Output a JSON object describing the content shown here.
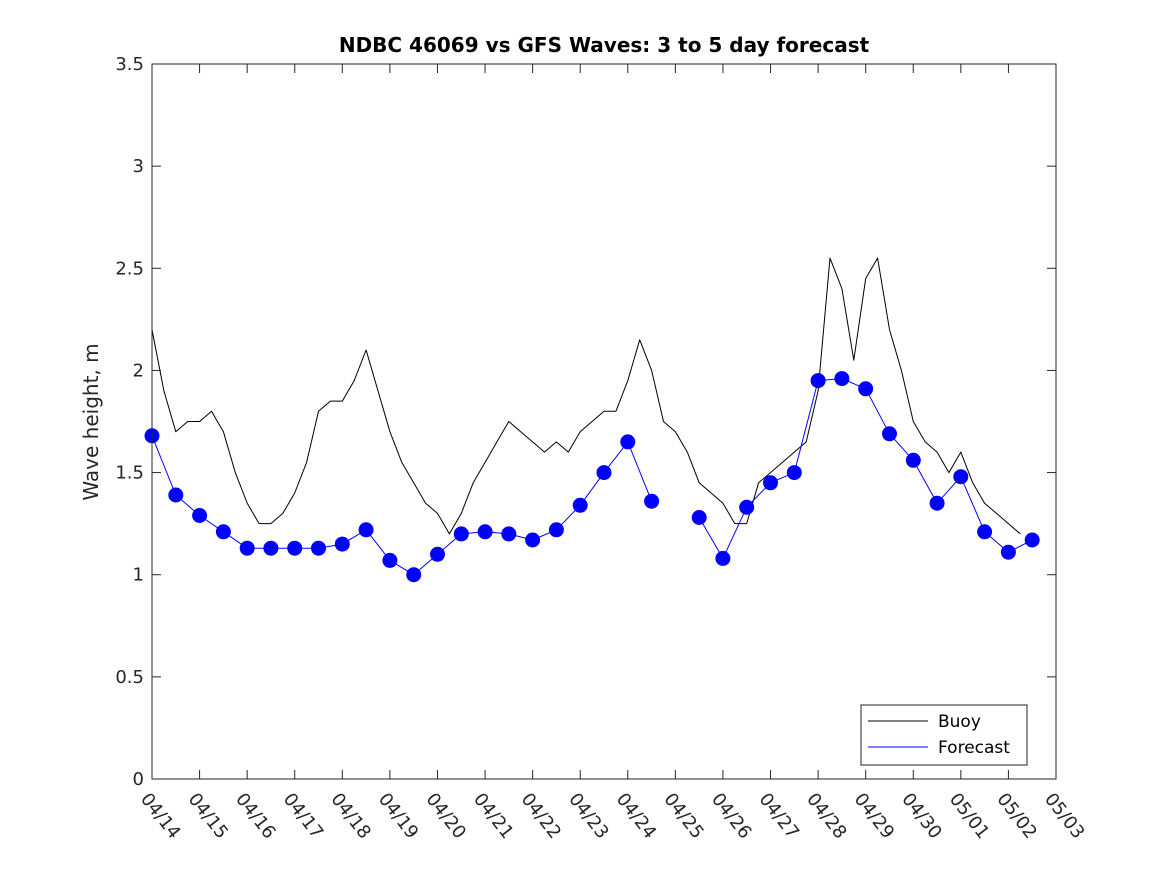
{
  "chart_data": {
    "type": "line",
    "title": "NDBC 46069 vs GFS Waves: 3 to 5 day forecast",
    "xlabel": "",
    "ylabel": "Wave height, m",
    "xlim": [
      "04/14",
      "05/03"
    ],
    "ylim": [
      0,
      3.5
    ],
    "y_ticks": [
      "0",
      "0.5",
      "1",
      "1.5",
      "2",
      "2.5",
      "3",
      "3.5"
    ],
    "x_ticks": [
      "04/14",
      "04/15",
      "04/16",
      "04/17",
      "04/18",
      "04/19",
      "04/20",
      "04/21",
      "04/22",
      "04/23",
      "04/24",
      "04/25",
      "04/26",
      "04/27",
      "04/28",
      "04/29",
      "04/30",
      "05/01",
      "05/02",
      "05/03"
    ],
    "grid": false,
    "legend": {
      "position": "bottom-right",
      "entries": [
        "Buoy",
        "Forecast"
      ]
    },
    "colors": {
      "buoy": "#000000",
      "forecast": "#0000ff",
      "axis": "#262626"
    },
    "series": [
      {
        "name": "Buoy",
        "x": [
          "04/14 00:00",
          "04/14 06:00",
          "04/14 12:00",
          "04/14 18:00",
          "04/15 00:00",
          "04/15 06:00",
          "04/15 12:00",
          "04/15 18:00",
          "04/16 00:00",
          "04/16 06:00",
          "04/16 12:00",
          "04/16 18:00",
          "04/17 00:00",
          "04/17 06:00",
          "04/17 12:00",
          "04/17 18:00",
          "04/18 00:00",
          "04/18 06:00",
          "04/18 12:00",
          "04/18 18:00",
          "04/19 00:00",
          "04/19 06:00",
          "04/19 12:00",
          "04/19 18:00",
          "04/20 00:00",
          "04/20 06:00",
          "04/20 12:00",
          "04/20 18:00",
          "04/21 00:00",
          "04/21 06:00",
          "04/21 12:00",
          "04/21 18:00",
          "04/22 00:00",
          "04/22 06:00",
          "04/22 12:00",
          "04/22 18:00",
          "04/23 00:00",
          "04/23 06:00",
          "04/23 12:00",
          "04/23 18:00",
          "04/24 00:00",
          "04/24 06:00",
          "04/24 12:00",
          "04/24 18:00",
          "04/25 00:00",
          "04/25 06:00",
          "04/25 12:00",
          "04/25 18:00",
          "04/26 00:00",
          "04/26 06:00",
          "04/26 12:00",
          "04/26 18:00",
          "04/27 00:00",
          "04/27 06:00",
          "04/27 12:00",
          "04/27 18:00",
          "04/28 00:00",
          "04/28 06:00",
          "04/28 12:00",
          "04/28 18:00",
          "04/29 00:00",
          "04/29 06:00",
          "04/29 12:00",
          "04/29 18:00",
          "04/30 00:00",
          "04/30 06:00",
          "04/30 12:00",
          "04/30 18:00",
          "05/01 00:00",
          "05/01 06:00",
          "05/01 12:00",
          "05/01 18:00",
          "05/02 00:00",
          "05/02 06:00"
        ],
        "y": [
          2.2,
          1.9,
          1.7,
          1.75,
          1.75,
          1.8,
          1.7,
          1.5,
          1.35,
          1.25,
          1.25,
          1.3,
          1.4,
          1.55,
          1.8,
          1.85,
          1.85,
          1.95,
          2.1,
          1.9,
          1.7,
          1.55,
          1.45,
          1.35,
          1.3,
          1.2,
          1.3,
          1.45,
          1.55,
          1.65,
          1.75,
          1.7,
          1.65,
          1.6,
          1.65,
          1.6,
          1.7,
          1.75,
          1.8,
          1.8,
          1.95,
          2.15,
          2.0,
          1.75,
          1.7,
          1.6,
          1.45,
          1.4,
          1.35,
          1.25,
          1.25,
          1.45,
          1.5,
          1.55,
          1.6,
          1.65,
          1.9,
          2.55,
          2.4,
          2.05,
          2.45,
          2.55,
          2.2,
          2.0,
          1.75,
          1.65,
          1.6,
          1.5,
          1.6,
          1.45,
          1.35,
          1.3,
          1.25,
          1.2
        ]
      },
      {
        "name": "Forecast",
        "x": [
          "04/14 00:00",
          "04/14 12:00",
          "04/15 00:00",
          "04/15 12:00",
          "04/16 00:00",
          "04/16 12:00",
          "04/17 00:00",
          "04/17 12:00",
          "04/18 00:00",
          "04/18 12:00",
          "04/19 00:00",
          "04/19 12:00",
          "04/20 00:00",
          "04/20 12:00",
          "04/21 00:00",
          "04/21 12:00",
          "04/22 00:00",
          "04/22 12:00",
          "04/23 00:00",
          "04/23 12:00",
          "04/24 00:00",
          "04/24 12:00",
          "04/25 00:00",
          "04/25 12:00",
          "04/26 00:00",
          "04/26 12:00",
          "04/27 00:00",
          "04/27 12:00",
          "04/28 00:00",
          "04/28 12:00",
          "04/29 00:00",
          "04/29 12:00",
          "04/30 00:00",
          "04/30 12:00",
          "05/01 00:00",
          "05/01 12:00",
          "05/02 00:00",
          "05/02 12:00"
        ],
        "y": [
          1.68,
          1.39,
          1.29,
          1.21,
          1.13,
          1.13,
          1.13,
          1.13,
          1.15,
          1.22,
          1.07,
          1.0,
          1.1,
          1.2,
          1.21,
          1.2,
          1.17,
          1.22,
          1.34,
          1.5,
          1.65,
          1.36,
          null,
          1.28,
          1.08,
          1.33,
          1.45,
          1.5,
          1.95,
          1.96,
          1.91,
          1.69,
          1.56,
          1.35,
          1.48,
          1.21,
          1.11,
          1.17
        ]
      }
    ]
  }
}
